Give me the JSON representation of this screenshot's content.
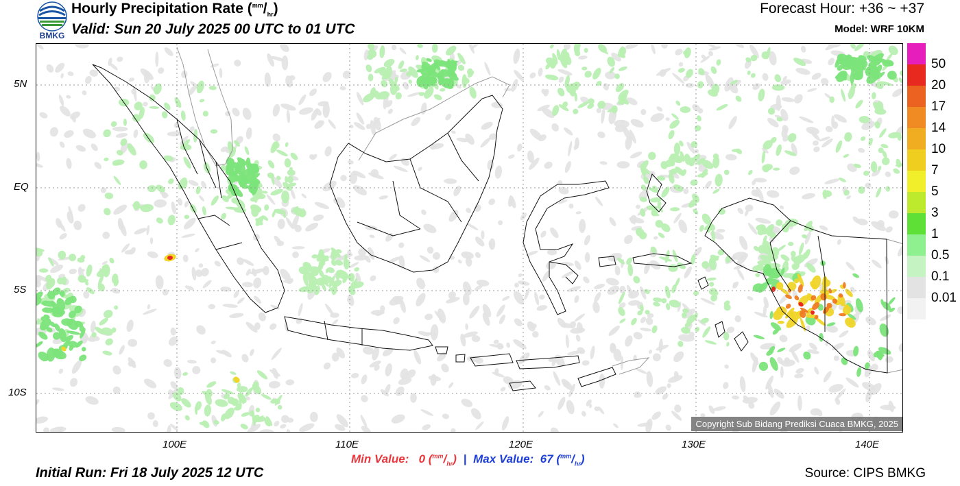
{
  "header": {
    "logo_text": "BMKG",
    "title": "Hourly Precipitation Rate (",
    "title_unit_sup": "mm",
    "title_unit_slash": "/",
    "title_unit_sub": "hr",
    "title_close": ")",
    "valid": "Valid: Sun 20 July 2025 00 UTC to 01 UTC",
    "forecast_hour": "Forecast Hour: +36 ~ +37",
    "model": "Model: WRF 10KM"
  },
  "map": {
    "lat_labels": [
      "5N",
      "EQ",
      "5S",
      "10S"
    ],
    "lon_labels": [
      "100E",
      "110E",
      "120E",
      "130E",
      "140E"
    ],
    "copyright": "Copyright Sub Bidang Prediksi Cuaca BMKG, 2025"
  },
  "stats": {
    "min_label": "Min Value:",
    "min_value": "0",
    "max_label": "Max Value:",
    "max_value": "67",
    "separator": "|",
    "unit_open": "(",
    "unit_sup": "mm",
    "unit_slash": "/",
    "unit_sub": "hr",
    "unit_close": ")"
  },
  "footer": {
    "initial_run": "Initial Run: Fri 18 July 2025 12 UTC",
    "source": "Source: CIPS BMKG"
  },
  "legend": {
    "labels": [
      "50",
      "20",
      "17",
      "14",
      "10",
      "7",
      "5",
      "3",
      "1",
      "0.5",
      "0.1",
      "0.01"
    ],
    "colors": [
      "#e61fbc",
      "#e8291f",
      "#ec6220",
      "#f08a22",
      "#f1ad22",
      "#f0ce1f",
      "#f0ef2a",
      "#bdea2c",
      "#5fe037",
      "#8ef08e",
      "#c5f4c2",
      "#e3e3e3"
    ]
  }
}
